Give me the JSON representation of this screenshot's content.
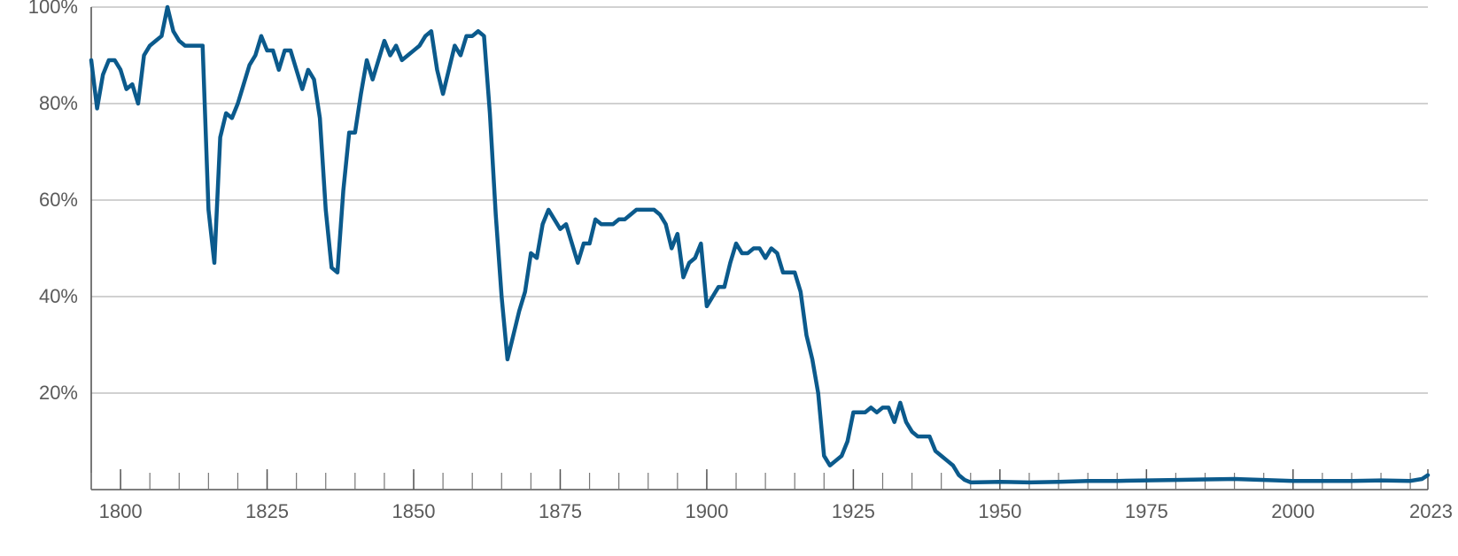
{
  "colors": {
    "series": "#0b5a8c",
    "grid": "#c2c2c2",
    "axis": "#555555",
    "text": "#5a5a5a"
  },
  "chart_data": {
    "type": "line",
    "title": "",
    "xlabel": "",
    "ylabel": "",
    "xlim": [
      1795,
      2023
    ],
    "ylim": [
      0,
      100
    ],
    "grid": true,
    "legend": "none",
    "x_ticks": [
      {
        "value": 1800,
        "label": "1800"
      },
      {
        "value": 1825,
        "label": "1825"
      },
      {
        "value": 1850,
        "label": "1850"
      },
      {
        "value": 1875,
        "label": "1875"
      },
      {
        "value": 1900,
        "label": "1900"
      },
      {
        "value": 1925,
        "label": "1925"
      },
      {
        "value": 1950,
        "label": "1950"
      },
      {
        "value": 1975,
        "label": "1975"
      },
      {
        "value": 2000,
        "label": "2000"
      },
      {
        "value": 2023,
        "label": "2023"
      }
    ],
    "x_minor_step": 5,
    "y_ticks": [
      {
        "value": 20,
        "label": "20%"
      },
      {
        "value": 40,
        "label": "40%"
      },
      {
        "value": 60,
        "label": "60%"
      },
      {
        "value": 80,
        "label": "80%"
      },
      {
        "value": 100,
        "label": "100%"
      }
    ],
    "series": [
      {
        "points": [
          [
            1795,
            89
          ],
          [
            1796,
            79
          ],
          [
            1797,
            86
          ],
          [
            1798,
            89
          ],
          [
            1799,
            89
          ],
          [
            1800,
            87
          ],
          [
            1801,
            83
          ],
          [
            1802,
            84
          ],
          [
            1803,
            80
          ],
          [
            1804,
            90
          ],
          [
            1805,
            92
          ],
          [
            1806,
            93
          ],
          [
            1807,
            94
          ],
          [
            1808,
            100
          ],
          [
            1809,
            95
          ],
          [
            1810,
            93
          ],
          [
            1811,
            92
          ],
          [
            1812,
            92
          ],
          [
            1813,
            92
          ],
          [
            1814,
            92
          ],
          [
            1815,
            58
          ],
          [
            1816,
            47
          ],
          [
            1817,
            73
          ],
          [
            1818,
            78
          ],
          [
            1819,
            77
          ],
          [
            1820,
            80
          ],
          [
            1821,
            84
          ],
          [
            1822,
            88
          ],
          [
            1823,
            90
          ],
          [
            1824,
            94
          ],
          [
            1825,
            91
          ],
          [
            1826,
            91
          ],
          [
            1827,
            87
          ],
          [
            1828,
            91
          ],
          [
            1829,
            91
          ],
          [
            1830,
            87
          ],
          [
            1831,
            83
          ],
          [
            1832,
            87
          ],
          [
            1833,
            85
          ],
          [
            1834,
            77
          ],
          [
            1835,
            58
          ],
          [
            1836,
            46
          ],
          [
            1837,
            45
          ],
          [
            1838,
            62
          ],
          [
            1839,
            74
          ],
          [
            1840,
            74
          ],
          [
            1841,
            82
          ],
          [
            1842,
            89
          ],
          [
            1843,
            85
          ],
          [
            1844,
            89
          ],
          [
            1845,
            93
          ],
          [
            1846,
            90
          ],
          [
            1847,
            92
          ],
          [
            1848,
            89
          ],
          [
            1849,
            90
          ],
          [
            1850,
            91
          ],
          [
            1851,
            92
          ],
          [
            1852,
            94
          ],
          [
            1853,
            95
          ],
          [
            1854,
            87
          ],
          [
            1855,
            82
          ],
          [
            1856,
            87
          ],
          [
            1857,
            92
          ],
          [
            1858,
            90
          ],
          [
            1859,
            94
          ],
          [
            1860,
            94
          ],
          [
            1861,
            95
          ],
          [
            1862,
            94
          ],
          [
            1863,
            78
          ],
          [
            1864,
            57
          ],
          [
            1865,
            40
          ],
          [
            1866,
            27
          ],
          [
            1867,
            32
          ],
          [
            1868,
            37
          ],
          [
            1869,
            41
          ],
          [
            1870,
            49
          ],
          [
            1871,
            48
          ],
          [
            1872,
            55
          ],
          [
            1873,
            58
          ],
          [
            1874,
            56
          ],
          [
            1875,
            54
          ],
          [
            1876,
            55
          ],
          [
            1877,
            51
          ],
          [
            1878,
            47
          ],
          [
            1879,
            51
          ],
          [
            1880,
            51
          ],
          [
            1881,
            56
          ],
          [
            1882,
            55
          ],
          [
            1883,
            55
          ],
          [
            1884,
            55
          ],
          [
            1885,
            56
          ],
          [
            1886,
            56
          ],
          [
            1887,
            57
          ],
          [
            1888,
            58
          ],
          [
            1889,
            58
          ],
          [
            1890,
            58
          ],
          [
            1891,
            58
          ],
          [
            1892,
            57
          ],
          [
            1893,
            55
          ],
          [
            1894,
            50
          ],
          [
            1895,
            53
          ],
          [
            1896,
            44
          ],
          [
            1897,
            47
          ],
          [
            1898,
            48
          ],
          [
            1899,
            51
          ],
          [
            1900,
            38
          ],
          [
            1901,
            40
          ],
          [
            1902,
            42
          ],
          [
            1903,
            42
          ],
          [
            1904,
            47
          ],
          [
            1905,
            51
          ],
          [
            1906,
            49
          ],
          [
            1907,
            49
          ],
          [
            1908,
            50
          ],
          [
            1909,
            50
          ],
          [
            1910,
            48
          ],
          [
            1911,
            50
          ],
          [
            1912,
            49
          ],
          [
            1913,
            45
          ],
          [
            1914,
            45
          ],
          [
            1915,
            45
          ],
          [
            1916,
            41
          ],
          [
            1917,
            32
          ],
          [
            1918,
            27
          ],
          [
            1919,
            20
          ],
          [
            1920,
            7
          ],
          [
            1921,
            5
          ],
          [
            1922,
            6
          ],
          [
            1923,
            7
          ],
          [
            1924,
            10
          ],
          [
            1925,
            16
          ],
          [
            1926,
            16
          ],
          [
            1927,
            16
          ],
          [
            1928,
            17
          ],
          [
            1929,
            16
          ],
          [
            1930,
            17
          ],
          [
            1931,
            17
          ],
          [
            1932,
            14
          ],
          [
            1933,
            18
          ],
          [
            1934,
            14
          ],
          [
            1935,
            12
          ],
          [
            1936,
            11
          ],
          [
            1937,
            11
          ],
          [
            1938,
            11
          ],
          [
            1939,
            8
          ],
          [
            1940,
            7
          ],
          [
            1941,
            6
          ],
          [
            1942,
            5
          ],
          [
            1943,
            3
          ],
          [
            1944,
            2
          ],
          [
            1945,
            1.5
          ],
          [
            1950,
            1.6
          ],
          [
            1955,
            1.5
          ],
          [
            1960,
            1.6
          ],
          [
            1965,
            1.8
          ],
          [
            1970,
            1.8
          ],
          [
            1975,
            1.9
          ],
          [
            1980,
            2.0
          ],
          [
            1985,
            2.1
          ],
          [
            1990,
            2.2
          ],
          [
            1995,
            2.0
          ],
          [
            2000,
            1.8
          ],
          [
            2005,
            1.8
          ],
          [
            2010,
            1.8
          ],
          [
            2015,
            1.9
          ],
          [
            2020,
            1.8
          ],
          [
            2022,
            2.2
          ],
          [
            2023,
            3.0
          ]
        ]
      }
    ]
  }
}
